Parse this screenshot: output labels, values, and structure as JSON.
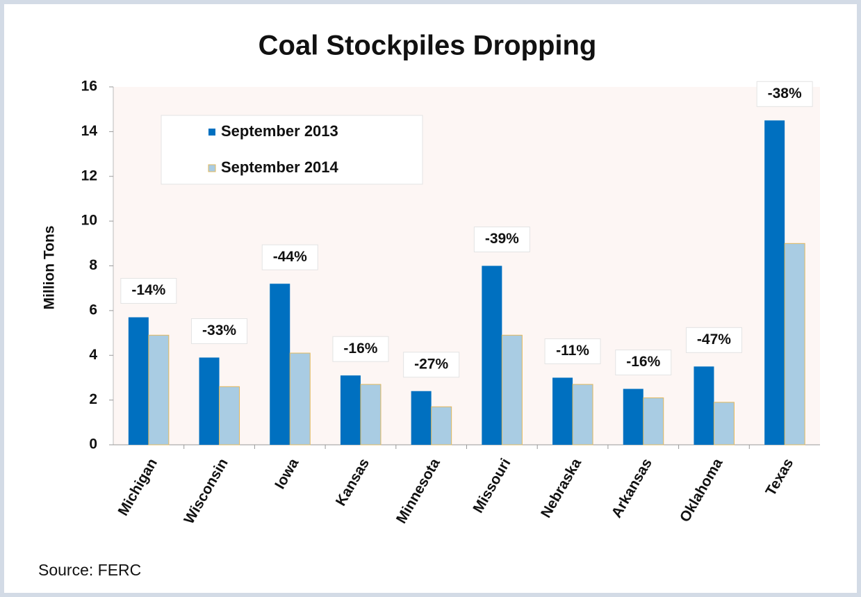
{
  "chart_data": {
    "type": "bar",
    "title": "Coal Stockpiles Dropping",
    "y_label": "Million Tons",
    "categories": [
      "Michigan",
      "Wisconsin",
      "Iowa",
      "Kansas",
      "Minnesota",
      "Missouri",
      "Nebraska",
      "Arkansas",
      "Oklahoma",
      "Texas"
    ],
    "series": [
      {
        "name": "September 2013",
        "color": "#0070c0",
        "values": [
          5.7,
          3.9,
          7.2,
          3.1,
          2.4,
          8.0,
          3.0,
          2.5,
          3.5,
          14.5
        ]
      },
      {
        "name": "September 2014",
        "color": "#a9cce3",
        "values": [
          4.9,
          2.6,
          4.1,
          2.7,
          1.7,
          4.9,
          2.7,
          2.1,
          1.9,
          9.0
        ]
      }
    ],
    "annotations": [
      "-14%",
      "-33%",
      "-44%",
      "-16%",
      "-27%",
      "-39%",
      "-11%",
      "-16%",
      "-47%",
      "-38%"
    ],
    "ylim": [
      0,
      16
    ],
    "yticks": [
      0,
      2,
      4,
      6,
      8,
      10,
      12,
      14,
      16
    ],
    "legend": "upper-left"
  },
  "source": "Source: FERC"
}
